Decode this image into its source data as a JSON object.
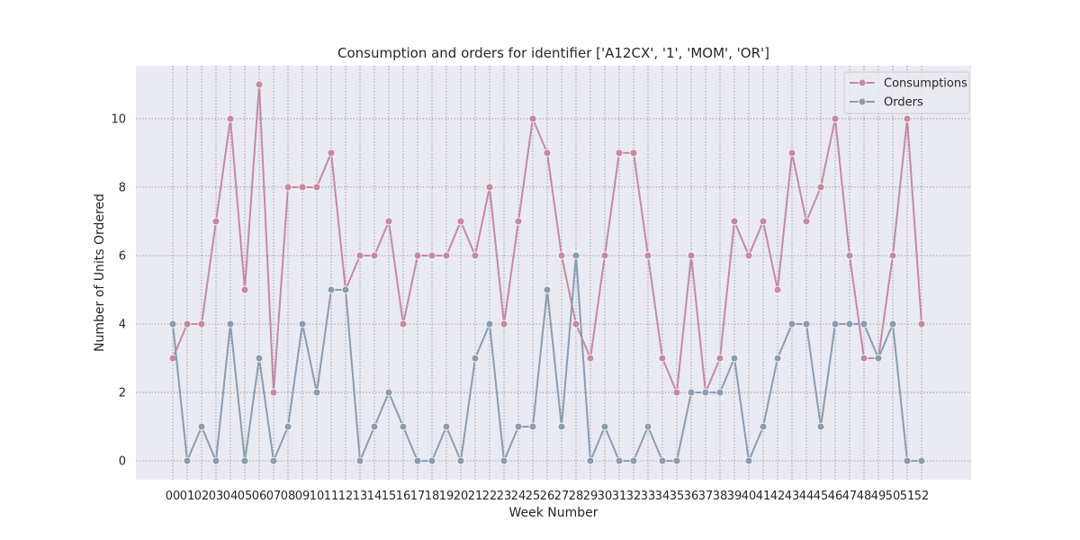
{
  "chart_data": {
    "type": "line",
    "title": "Consumption and orders for identifier ['A12CX', '1', 'MOM', 'OR']",
    "xlabel": "Week Number",
    "ylabel": "Number of Units Ordered",
    "categories": [
      "00",
      "01",
      "02",
      "03",
      "04",
      "05",
      "06",
      "07",
      "08",
      "09",
      "10",
      "11",
      "12",
      "13",
      "14",
      "15",
      "16",
      "17",
      "18",
      "19",
      "20",
      "21",
      "22",
      "23",
      "24",
      "25",
      "26",
      "27",
      "28",
      "29",
      "30",
      "31",
      "32",
      "33",
      "34",
      "35",
      "36",
      "37",
      "38",
      "39",
      "40",
      "41",
      "42",
      "43",
      "44",
      "45",
      "46",
      "47",
      "48",
      "49",
      "50",
      "51",
      "52"
    ],
    "yticks": [
      "0",
      "2",
      "4",
      "6",
      "8",
      "10"
    ],
    "ylim": [
      -0.55,
      11.55
    ],
    "grid": true,
    "legend_position": "top-right",
    "series": [
      {
        "name": "Consumptions",
        "color": "#c48aa0",
        "values": [
          3,
          4,
          4,
          7,
          10,
          5,
          11,
          2,
          8,
          8,
          8,
          9,
          5,
          6,
          6,
          7,
          4,
          6,
          6,
          6,
          7,
          6,
          8,
          4,
          7,
          10,
          9,
          6,
          4,
          3,
          6,
          9,
          9,
          6,
          3,
          2,
          6,
          2,
          3,
          7,
          6,
          7,
          5,
          9,
          7,
          8,
          10,
          6,
          3,
          3,
          6,
          10,
          4
        ]
      },
      {
        "name": "Orders",
        "color": "#8a9cb0",
        "values": [
          4,
          0,
          1,
          0,
          4,
          0,
          3,
          0,
          1,
          4,
          2,
          5,
          5,
          0,
          1,
          2,
          1,
          0,
          0,
          1,
          0,
          3,
          4,
          0,
          1,
          1,
          5,
          1,
          6,
          0,
          1,
          0,
          0,
          1,
          0,
          0,
          2,
          2,
          2,
          3,
          0,
          1,
          3,
          4,
          4,
          1,
          4,
          4,
          4,
          3,
          4,
          0,
          0
        ]
      }
    ]
  }
}
